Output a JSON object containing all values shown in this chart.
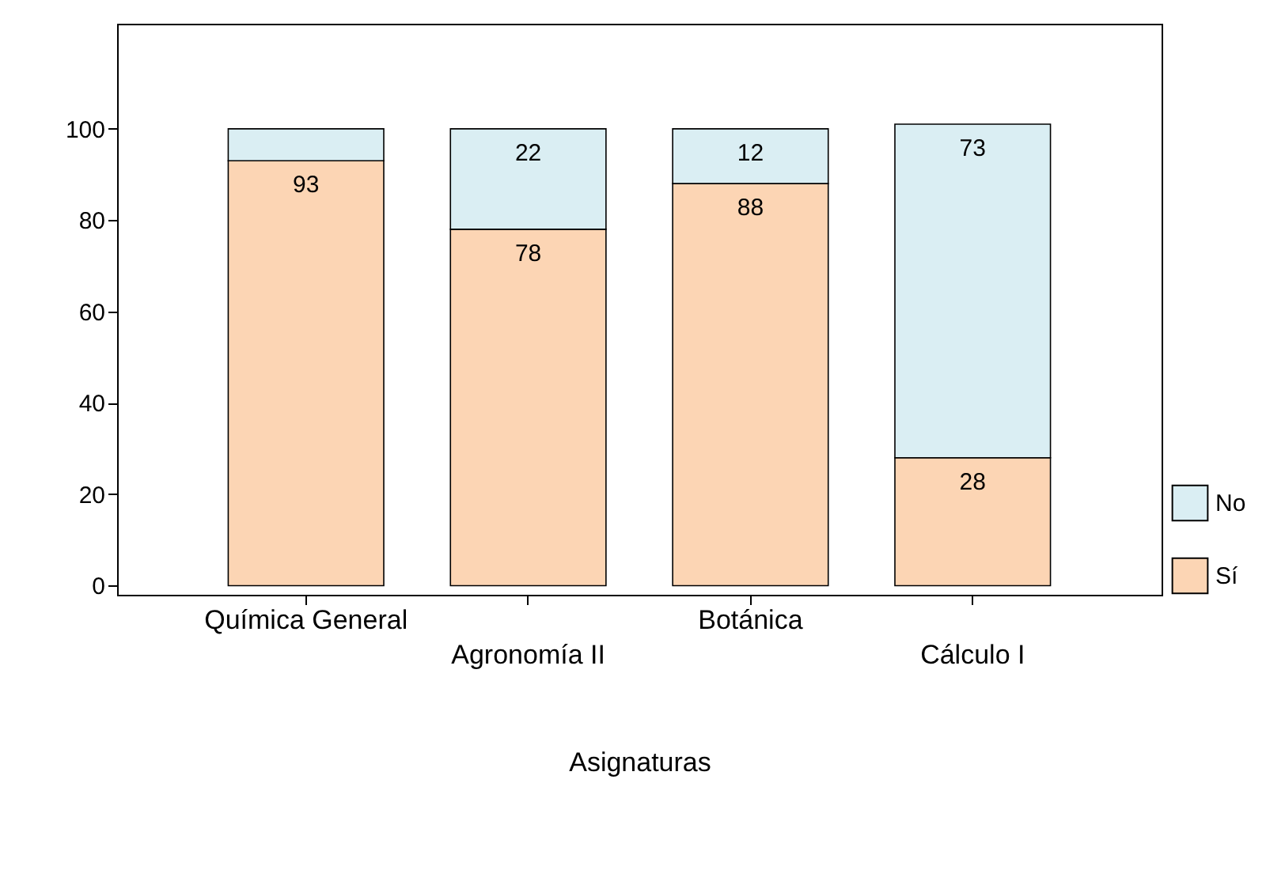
{
  "chart_data": {
    "type": "bar",
    "stacked": true,
    "xlabel": "Asignaturas",
    "categories": [
      "Química General",
      "Agronomía II",
      "Botánica",
      "Cálculo I"
    ],
    "series": [
      {
        "name": "Sí",
        "color": "#fcd5b4",
        "values": [
          93,
          78,
          88,
          28
        ],
        "value_labels": [
          "93",
          "78",
          "88",
          "28"
        ]
      },
      {
        "name": "No",
        "color": "#daeef3",
        "values": [
          7,
          22,
          12,
          73
        ],
        "value_labels": [
          null,
          "22",
          "12",
          "73"
        ]
      }
    ],
    "ylim": [
      -2,
      123
    ],
    "yticks": [
      0,
      20,
      40,
      60,
      80,
      100
    ],
    "grid": false,
    "legend": "bottom right"
  }
}
